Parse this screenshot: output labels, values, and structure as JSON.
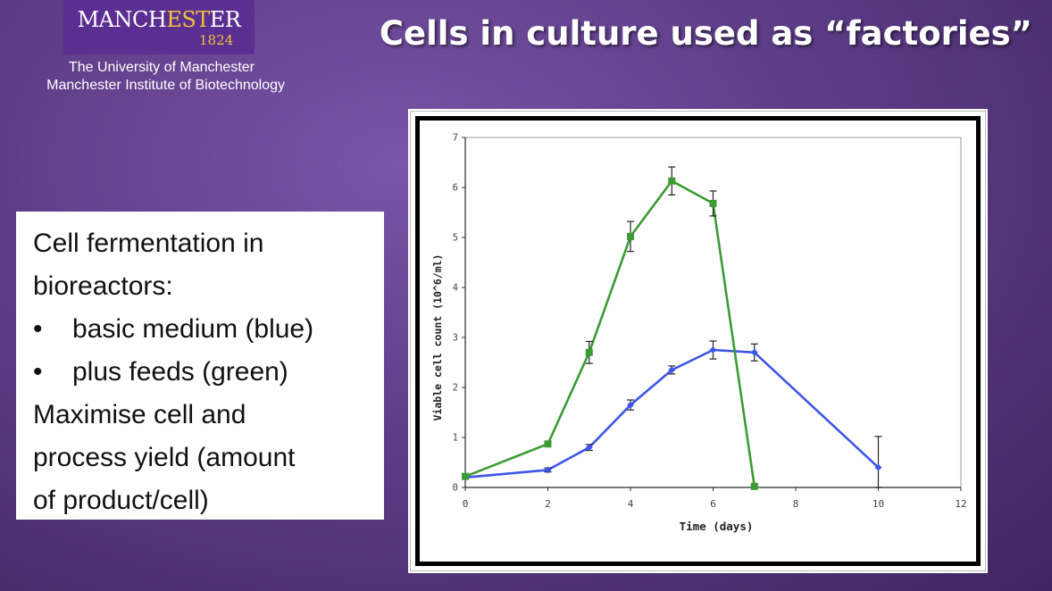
{
  "logo": {
    "manchester_part1": "MANCH",
    "manchester_part2": "EST",
    "manchester_part3": "ER",
    "year": "1824",
    "line1": "The University of Manchester",
    "line2": "Manchester Institute of Biotechnology"
  },
  "slide": {
    "title": "Cells in culture used as “factories”"
  },
  "textbox": {
    "line1": "Cell fermentation in",
    "line2": "bioreactors:",
    "bullet1": "basic medium (blue)",
    "bullet2": "plus feeds (green)",
    "line5": "Maximise cell and",
    "line6": "process yield (amount",
    "line7": "of product/cell)",
    "bullet_char": "•"
  },
  "chart_data": {
    "type": "line",
    "xlabel": "Time (days)",
    "ylabel": "Viable cell count (10^6/ml)",
    "xlim": [
      0,
      12
    ],
    "ylim": [
      0,
      7
    ],
    "xticks": [
      "0",
      "2",
      "4",
      "6",
      "8",
      "10",
      "12"
    ],
    "yticks": [
      "0",
      "1",
      "2",
      "3",
      "4",
      "5",
      "6",
      "7"
    ],
    "series": [
      {
        "color": "#3d56e6",
        "x": [
          0,
          2,
          3,
          4,
          5,
          6,
          7,
          10
        ],
        "y": [
          0.2,
          0.35,
          0.8,
          1.65,
          2.35,
          2.75,
          2.7,
          0.4
        ],
        "err": [
          0.03,
          0.04,
          0.06,
          0.1,
          0.08,
          0.18,
          0.17,
          0.62
        ]
      },
      {
        "color": "#3c9b35",
        "x": [
          0,
          2,
          3,
          4,
          5,
          6,
          7
        ],
        "y": [
          0.22,
          0.87,
          2.7,
          5.02,
          6.13,
          5.68,
          0.02
        ],
        "err": [
          0.03,
          0.05,
          0.22,
          0.3,
          0.28,
          0.25,
          0.03
        ]
      }
    ]
  }
}
